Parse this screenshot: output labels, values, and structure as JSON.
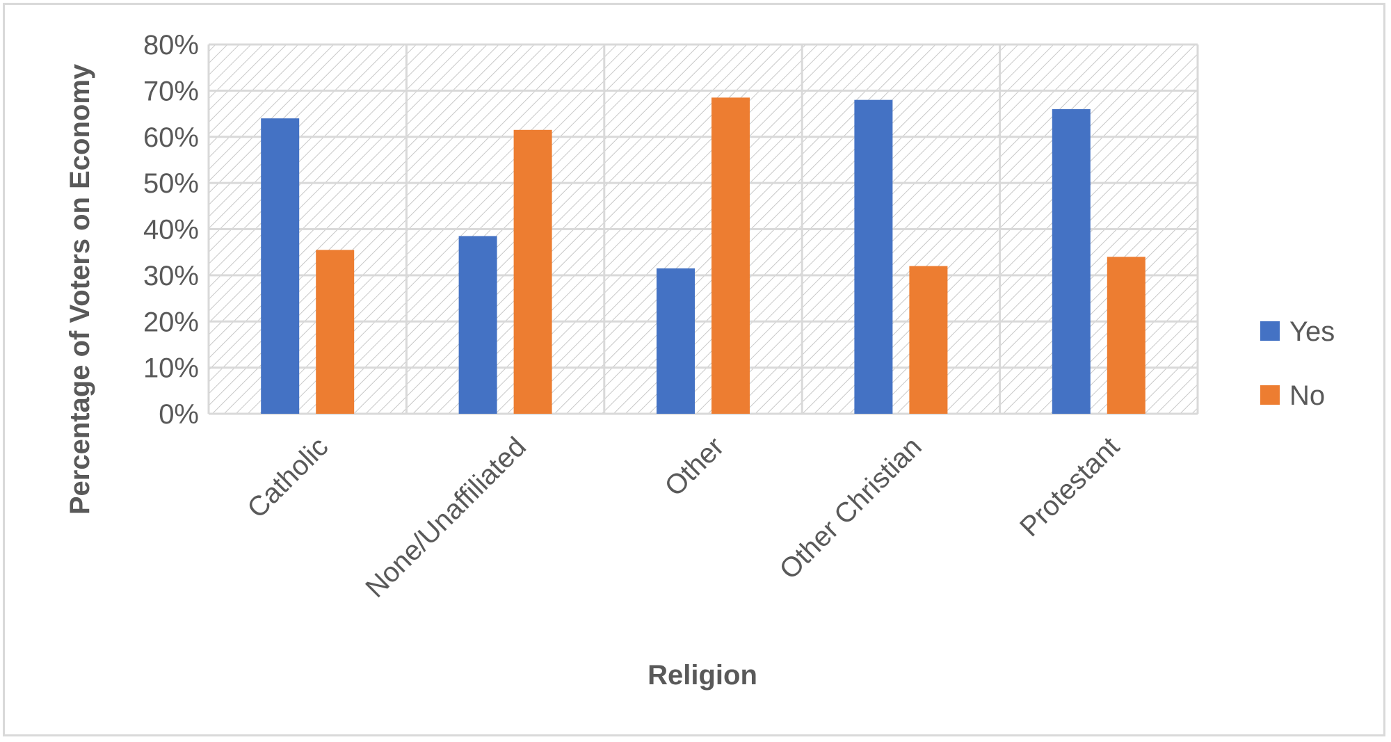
{
  "chart_data": {
    "type": "bar",
    "title": "",
    "xlabel": "Religion",
    "ylabel": "Percentage of Voters on Economy",
    "categories": [
      "Catholic",
      "None/Unaffiliated",
      "Other",
      "Other Christian",
      "Protestant"
    ],
    "series": [
      {
        "name": "Yes",
        "color": "#4472c4",
        "values": [
          64,
          38.5,
          31.5,
          68,
          66
        ]
      },
      {
        "name": "No",
        "color": "#ed7d31",
        "values": [
          35.5,
          61.5,
          68.5,
          32,
          34
        ]
      }
    ],
    "ylim": [
      0,
      80
    ],
    "yticks": [
      0,
      10,
      20,
      30,
      40,
      50,
      60,
      70,
      80
    ],
    "ytick_labels": [
      "0%",
      "10%",
      "20%",
      "30%",
      "40%",
      "50%",
      "60%",
      "70%",
      "80%"
    ],
    "grid": true,
    "plot_fill": "diagonal-hatch",
    "legend_position": "right"
  }
}
